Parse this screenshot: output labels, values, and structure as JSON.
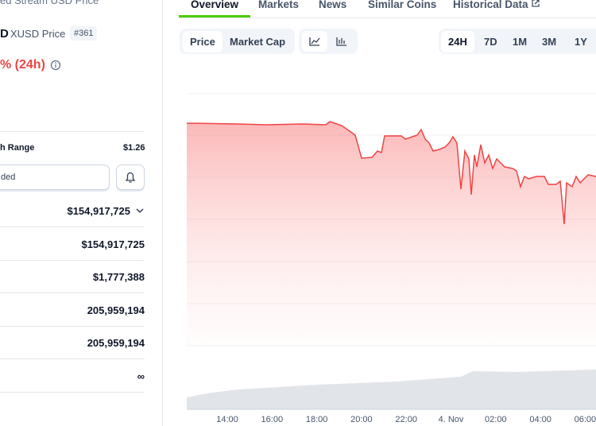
{
  "coin": {
    "subtitle": "ed Stream USD Price",
    "name": "D",
    "symbol_price": "XUSD Price",
    "rank": "#361",
    "change": "% (24h)"
  },
  "range": {
    "label": "h Range",
    "high": "$1.26"
  },
  "input": {
    "placeholder": "ded"
  },
  "stats": [
    "$154,917,725",
    "$154,917,725",
    "$1,777,388",
    "205,959,194",
    "205,959,194",
    "∞"
  ],
  "tabs": [
    "Overview",
    "Markets",
    "News",
    "Similar Coins",
    "Historical Data"
  ],
  "toggle": [
    "Price",
    "Market Cap"
  ],
  "periods": [
    "24H",
    "7D",
    "1M",
    "3M",
    "1Y"
  ],
  "x_labels": [
    "14:00",
    "16:00",
    "18:00",
    "20:00",
    "22:00",
    "4. Nov",
    "02:00",
    "04:00",
    "06:00"
  ]
}
